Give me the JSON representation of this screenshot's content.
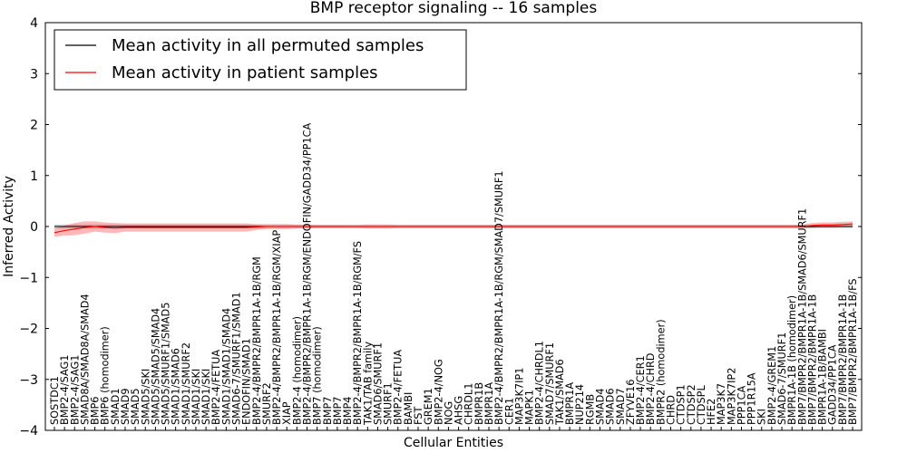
{
  "chart_data": {
    "type": "line",
    "title": "BMP receptor signaling -- 16 samples",
    "xlabel": "Cellular Entities",
    "ylabel": "Inferred Activity",
    "ylim": [
      -4,
      4
    ],
    "yticks": [
      "−4",
      "−3",
      "−2",
      "−1",
      "0",
      "1",
      "2",
      "3",
      "4"
    ],
    "grid": false,
    "legend_position": "top-left",
    "categories": [
      "SOSTDC1",
      "BMP2-4/SAG1",
      "BMP2-4/SAG1",
      "SMAD8A/SMAD8A/SMAD4",
      "BMP6",
      "BMP6 (homodimer)",
      "SMAD1",
      "SMAD9",
      "SMAD5",
      "SMAD5/SKI",
      "SMAD5/SMAD5/SMAD4",
      "SMAD5/SMURF1/SMAD5",
      "SMAD1/SMAD6",
      "SMAD1/SMURF2",
      "SMAD1/SKI",
      "SMAD1/SKI",
      "BMP2-4/FETUA",
      "SMAD1/SMAD1/SMAD4",
      "SMAD6-7/SMURF1/SMAD1",
      "ENDOFIN/SMAD1",
      "BMP2-4/BMPR2/BMPR1A-1B/RGM",
      "SMURF2",
      "BMP2-4/BMPR2/BMPR1A-1B/RGM/XIAP",
      "XIAP",
      "BMP2-4 (homodimer)",
      "BMP2-4/BMPR2/BMPR1A-1B/RGM/ENDOFIN/GADD34/PP1CA",
      "BMP7 (homodimer)",
      "BMP7",
      "BMP7",
      "BMP4",
      "BMP2-4/BMPR2/BMPR1A-1B/RGM/FS",
      "TAK1/TAB family",
      "SMAD6/SMURF1",
      "SMURF1",
      "BMP2-4/FETUA",
      "BAMBI",
      "FST",
      "GREM1",
      "BMP2-4/NOG",
      "NOG",
      "AHSG",
      "CHRDL1",
      "BMPR1B",
      "BMPR1A",
      "BMP2-4/BMPR2/BMPR1A-1B/RGM/SMAD7/SMURF1",
      "CER1",
      "MAP3K7IP1",
      "MAPK1",
      "BMP2-4/CHRDL1",
      "SMAD7/SMURF1",
      "TAK1/SMAD6",
      "BMPR1A",
      "NUP214",
      "RGMB",
      "SMAD4",
      "SMAD6",
      "SMAD7",
      "ZFYVE16",
      "BMP2-4/CER1",
      "BMP2-4/CHRD",
      "BMPR2 (homodimer)",
      "CHRD",
      "CTDSP1",
      "CTDSP2",
      "CTDSPL",
      "HFE2",
      "MAP3K7",
      "MAP3K7IP2",
      "PPP1CA",
      "PPP1R15A",
      "SKI",
      "BMP2-4/GREM1",
      "SMAD6-7/SMURF1",
      "BMPR1A-1B (homodimer)",
      "BMP7/BMPR2/BMPR1A-1B/SMAD6/SMURF1",
      "BMP7/BMPR2/BMPR1A-1B",
      "BMPR1A-1B/BAMBI",
      "GADD34/PP1CA",
      "BMP7/BMPR2/BMPR1A-1B",
      "BMP7/BMPR2/BMPR1A-1B/FS"
    ],
    "series": [
      {
        "name": "Mean activity in all permuted samples",
        "color": "#000000",
        "values": [
          0.0,
          0.0,
          0.0,
          0.0,
          0.0,
          0.0,
          0.0,
          0.0,
          0.0,
          0.0,
          0.0,
          0.0,
          0.0,
          0.0,
          0.0,
          0.0,
          0.0,
          0.0,
          0.0,
          0.0,
          0.0,
          0.0,
          0.0,
          0.0,
          0.0,
          0.0,
          0.0,
          0.0,
          0.0,
          0.0,
          0.0,
          0.0,
          0.0,
          0.0,
          0.0,
          0.0,
          0.0,
          0.0,
          0.0,
          0.0,
          0.0,
          0.0,
          0.0,
          0.0,
          0.0,
          0.0,
          0.0,
          0.0,
          0.0,
          0.0,
          0.0,
          0.0,
          0.0,
          0.0,
          0.0,
          0.0,
          0.0,
          0.0,
          0.0,
          0.0,
          0.0,
          0.0,
          0.0,
          0.0,
          0.0,
          0.0,
          0.0,
          0.0,
          0.0,
          0.0,
          0.0,
          0.0,
          0.0,
          0.0,
          0.0,
          0.0,
          0.0,
          0.0,
          0.0,
          0.0
        ]
      },
      {
        "name": "Mean activity in patient samples",
        "color": "#ff0000",
        "values": [
          -0.12,
          -0.08,
          -0.05,
          -0.02,
          0.0,
          -0.02,
          -0.03,
          -0.02,
          -0.02,
          -0.02,
          -0.02,
          -0.02,
          -0.02,
          -0.02,
          -0.02,
          -0.02,
          -0.02,
          -0.02,
          -0.02,
          -0.02,
          -0.01,
          0.0,
          0.0,
          0.0,
          0.0,
          0.0,
          0.0,
          0.0,
          0.0,
          0.0,
          0.0,
          0.0,
          0.0,
          0.0,
          0.0,
          0.0,
          0.0,
          0.0,
          0.0,
          0.0,
          0.0,
          0.0,
          0.0,
          0.0,
          0.0,
          0.0,
          0.0,
          0.0,
          0.0,
          0.0,
          0.0,
          0.0,
          0.0,
          0.0,
          0.0,
          0.0,
          0.0,
          0.0,
          0.0,
          0.0,
          0.0,
          0.0,
          0.0,
          0.0,
          0.0,
          0.0,
          0.0,
          0.0,
          0.0,
          0.0,
          0.0,
          0.0,
          0.0,
          0.0,
          0.0,
          0.02,
          0.03,
          0.03,
          0.04,
          0.05
        ]
      }
    ],
    "band_permuted": [
      0.04,
      0.04,
      0.04,
      0.04,
      0.04,
      0.04,
      0.04,
      0.04,
      0.04,
      0.04,
      0.04,
      0.04,
      0.04,
      0.04,
      0.04,
      0.04,
      0.04,
      0.04,
      0.04,
      0.04,
      0.03,
      0.03,
      0.03,
      0.03,
      0.03,
      0.03,
      0.03,
      0.03,
      0.03,
      0.03,
      0.03,
      0.03,
      0.03,
      0.03,
      0.03,
      0.03,
      0.03,
      0.03,
      0.03,
      0.03,
      0.03,
      0.03,
      0.03,
      0.03,
      0.03,
      0.03,
      0.03,
      0.03,
      0.03,
      0.03,
      0.03,
      0.03,
      0.03,
      0.03,
      0.03,
      0.03,
      0.03,
      0.03,
      0.03,
      0.03,
      0.03,
      0.03,
      0.03,
      0.03,
      0.03,
      0.03,
      0.03,
      0.03,
      0.03,
      0.03,
      0.03,
      0.03,
      0.03,
      0.03,
      0.03,
      0.03,
      0.03,
      0.03,
      0.03,
      0.03
    ],
    "band_patient": [
      0.08,
      0.1,
      0.12,
      0.12,
      0.1,
      0.1,
      0.1,
      0.08,
      0.08,
      0.08,
      0.08,
      0.08,
      0.08,
      0.08,
      0.08,
      0.08,
      0.08,
      0.08,
      0.08,
      0.08,
      0.06,
      0.05,
      0.05,
      0.05,
      0.04,
      0.04,
      0.03,
      0.03,
      0.03,
      0.03,
      0.03,
      0.04,
      0.04,
      0.04,
      0.03,
      0.03,
      0.03,
      0.03,
      0.03,
      0.03,
      0.03,
      0.03,
      0.03,
      0.03,
      0.03,
      0.03,
      0.03,
      0.03,
      0.03,
      0.03,
      0.03,
      0.03,
      0.03,
      0.03,
      0.03,
      0.03,
      0.03,
      0.03,
      0.03,
      0.03,
      0.03,
      0.03,
      0.03,
      0.03,
      0.03,
      0.03,
      0.03,
      0.03,
      0.03,
      0.03,
      0.03,
      0.03,
      0.03,
      0.03,
      0.04,
      0.05,
      0.05,
      0.05,
      0.05,
      0.05
    ]
  }
}
